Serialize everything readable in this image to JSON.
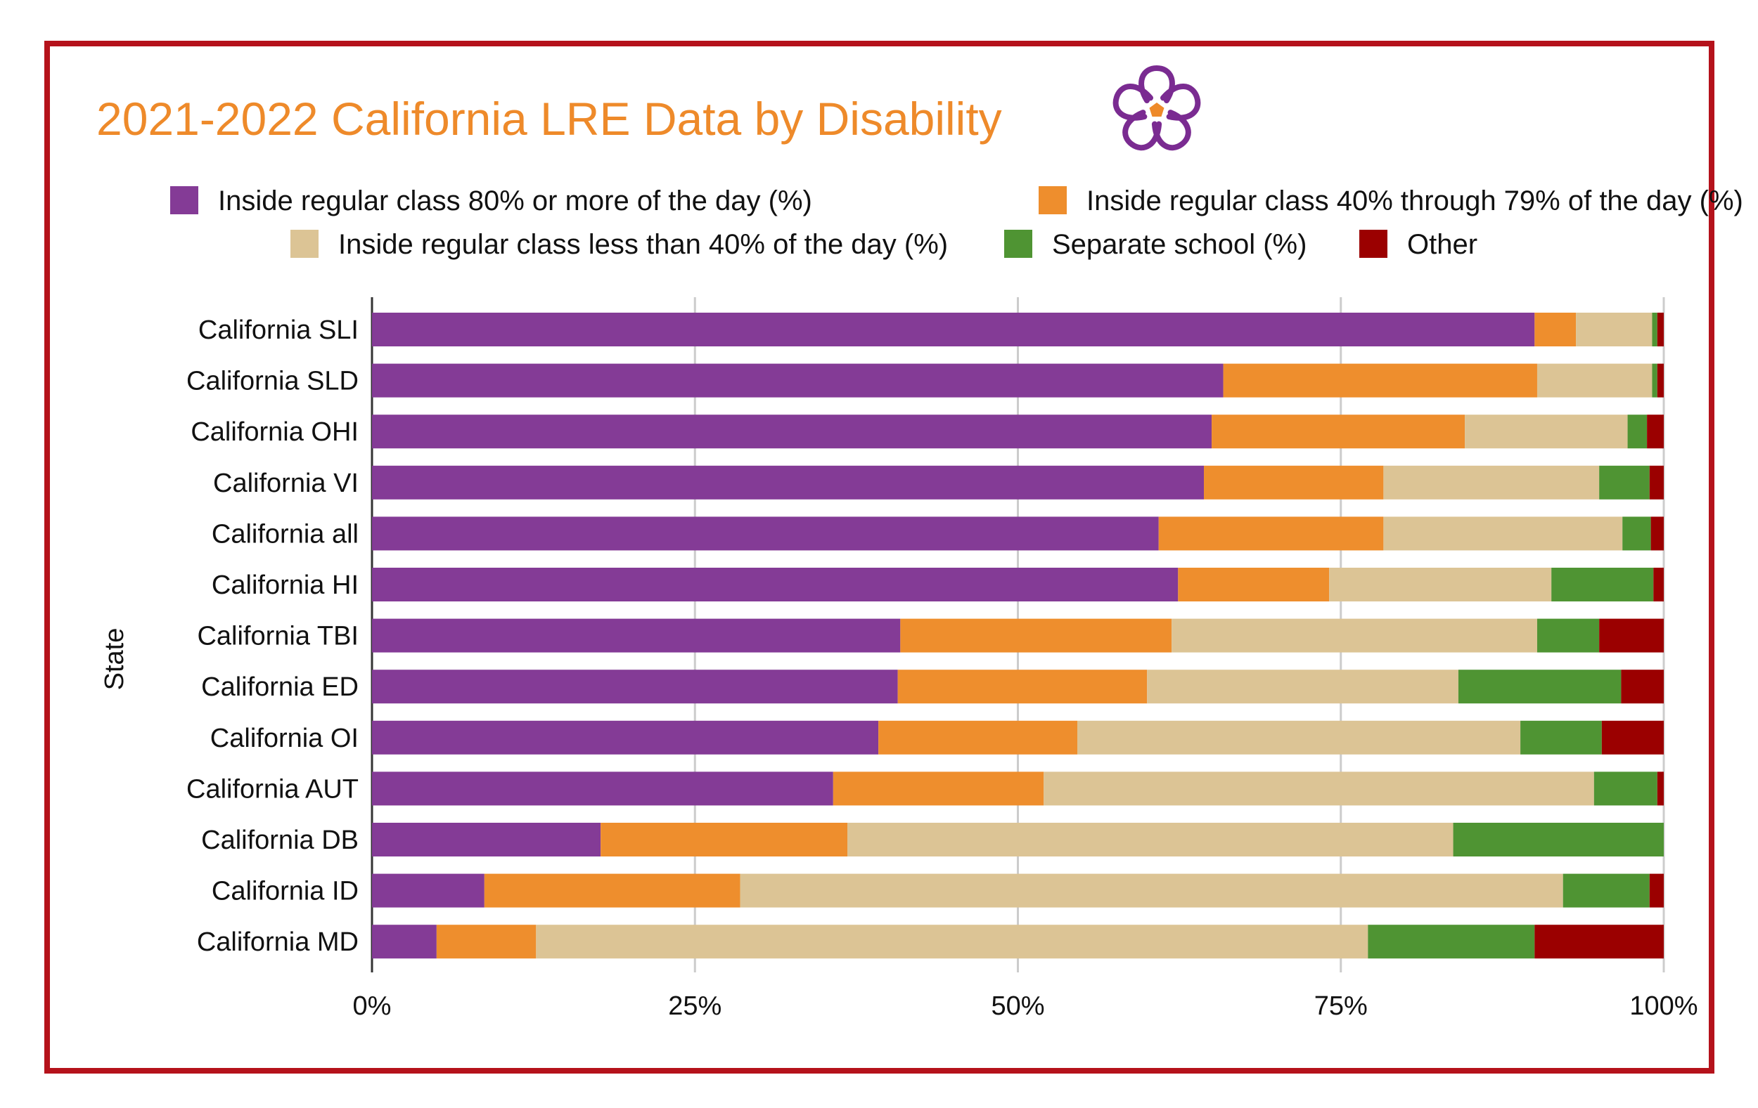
{
  "chart_data": {
    "type": "bar",
    "orientation": "horizontal",
    "stacked": "percent",
    "title": "2021-2022 California LRE Data by Disability",
    "ylabel": "State",
    "xlabel": "",
    "xlim": [
      0,
      100
    ],
    "x_ticks": [
      "0%",
      "25%",
      "50%",
      "75%",
      "100%"
    ],
    "grid": "vertical",
    "legend_placement": "top",
    "categories": [
      "California SLI",
      "California SLD",
      "California OHI",
      "California VI",
      "California all",
      "California HI",
      "California TBI",
      "California ED",
      "California OI",
      "California AUT",
      "California DB",
      "California ID",
      "California MD"
    ],
    "series": [
      {
        "name": "Inside regular class 80% or more of the day (%)",
        "color": "#843b96",
        "values": [
          90.0,
          65.9,
          65.0,
          64.4,
          60.9,
          62.4,
          40.9,
          40.7,
          39.2,
          35.7,
          17.7,
          8.7,
          5.0
        ]
      },
      {
        "name": "Inside regular class 40% through 79% of the day (%)",
        "color": "#ee8e2d",
        "values": [
          3.2,
          24.3,
          19.6,
          13.9,
          17.4,
          11.7,
          21.0,
          19.3,
          15.4,
          16.3,
          19.1,
          19.8,
          7.7
        ]
      },
      {
        "name": "Inside regular class less than 40% of the day (%)",
        "color": "#dcc495",
        "values": [
          5.9,
          8.9,
          12.6,
          16.7,
          18.5,
          17.2,
          28.3,
          24.1,
          34.3,
          42.6,
          46.9,
          63.7,
          64.4
        ]
      },
      {
        "name": "Separate school (%)",
        "color": "#4f9433",
        "values": [
          0.4,
          0.4,
          1.5,
          3.9,
          2.2,
          7.9,
          4.8,
          12.6,
          6.3,
          4.9,
          16.3,
          6.7,
          12.9
        ]
      },
      {
        "name": "Other",
        "color": "#9b0000",
        "values": [
          0.5,
          0.5,
          1.3,
          1.1,
          1.0,
          0.8,
          5.0,
          3.3,
          4.8,
          0.5,
          0.0,
          1.1,
          10.0
        ]
      }
    ]
  },
  "colors": {
    "title": "#ee8a2a",
    "frame": "#b5121b",
    "logo_purple": "#7a2b91",
    "logo_orange": "#ee8a2a"
  },
  "logo": {
    "icon": "five-loop-knot-logo-icon"
  }
}
